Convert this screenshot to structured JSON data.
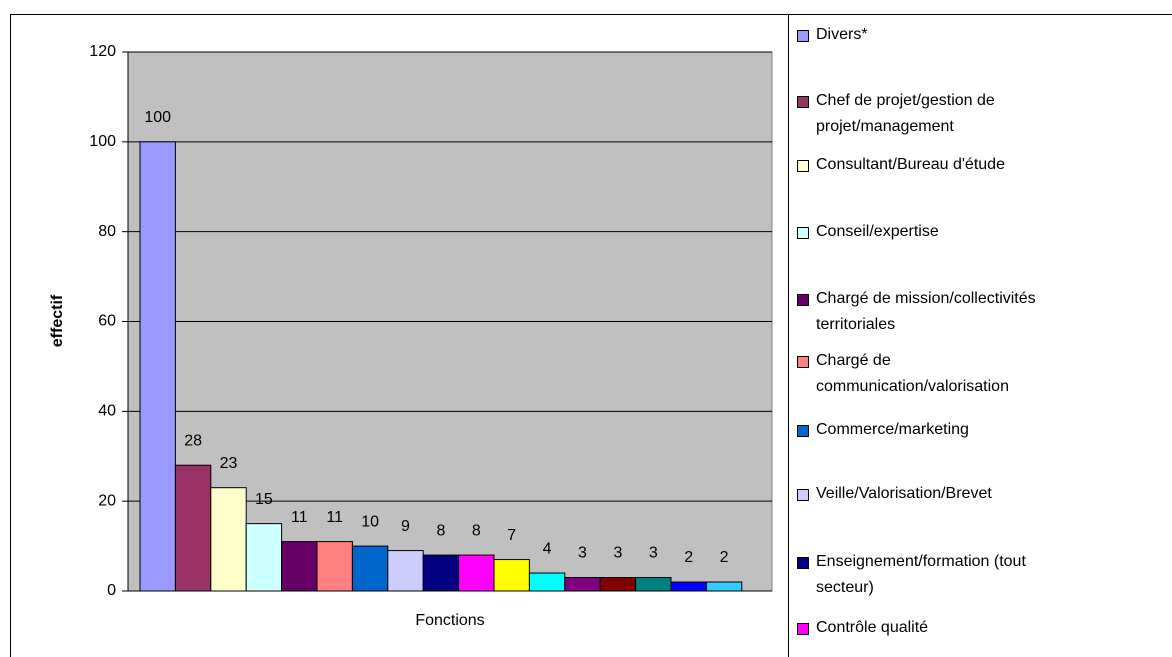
{
  "chart_data": {
    "type": "bar",
    "y_label": "effectif",
    "x_label": "Fonctions",
    "categories": [
      "Divers*",
      "Chef de projet/gestion de projet/management",
      "Consultant/Bureau d'étude",
      "Conseil/expertise",
      "Chargé de mission/collectivités territoriales",
      "Chargé de communication/valorisation",
      "Commerce/marketing",
      "Veille/Valorisation/Brevet",
      "Enseignement/formation (tout secteur)",
      "Contrôle qualité",
      null,
      null,
      null,
      null,
      null,
      null,
      null
    ],
    "values": [
      100,
      28,
      23,
      15,
      11,
      11,
      10,
      9,
      8,
      8,
      7,
      4,
      3,
      3,
      3,
      2,
      2
    ],
    "colors": [
      "#9999ff",
      "#993366",
      "#ffffcc",
      "#ccffff",
      "#660066",
      "#ff8080",
      "#0066cc",
      "#ccccff",
      "#000080",
      "#ff00ff",
      "#ffff00",
      "#00ffff",
      "#800080",
      "#800000",
      "#008080",
      "#0000ff",
      "#33ccff"
    ],
    "ylim": [
      0,
      120
    ],
    "yticks": [
      0,
      20,
      40,
      60,
      80,
      100,
      120
    ],
    "grid": true,
    "legend": "right"
  }
}
